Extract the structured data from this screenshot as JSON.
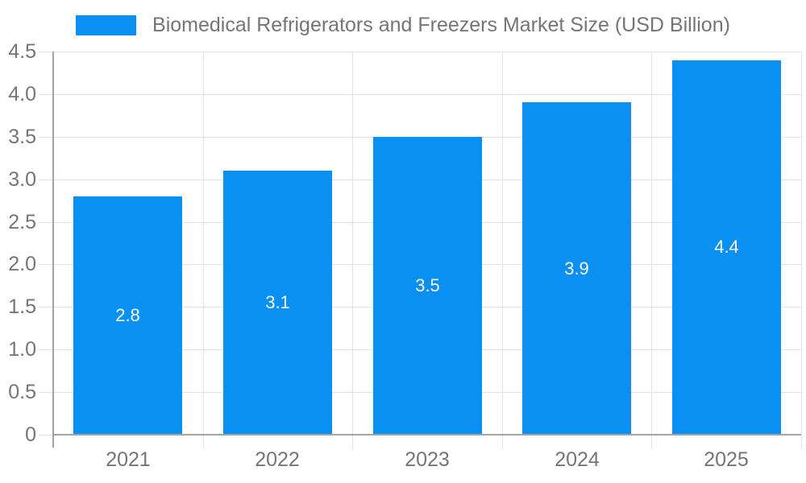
{
  "chart_data": {
    "type": "bar",
    "title": "Biomedical Refrigerators and Freezers Market Size (USD Billion)",
    "categories": [
      "2021",
      "2022",
      "2023",
      "2024",
      "2025"
    ],
    "values": [
      2.8,
      3.1,
      3.5,
      3.9,
      4.4
    ],
    "bar_labels": [
      "2.8",
      "3.1",
      "3.5",
      "3.9",
      "4.4"
    ],
    "xlabel": "",
    "ylabel": "",
    "ylim": [
      0,
      4.5
    ],
    "ytick_step": 0.5,
    "ytick_labels": [
      "0",
      "0.5",
      "1.0",
      "1.5",
      "2.0",
      "2.5",
      "3.0",
      "3.5",
      "4.0",
      "4.5"
    ],
    "grid": true,
    "legend_position": "top",
    "colors": {
      "bar": "#0a8ff2",
      "bar_label": "#ffffff",
      "axis": "#a3a3a3",
      "gridline": "#e3e3e3",
      "tick_label": "#757575",
      "title": "#757575",
      "background": "#ffffff"
    }
  }
}
